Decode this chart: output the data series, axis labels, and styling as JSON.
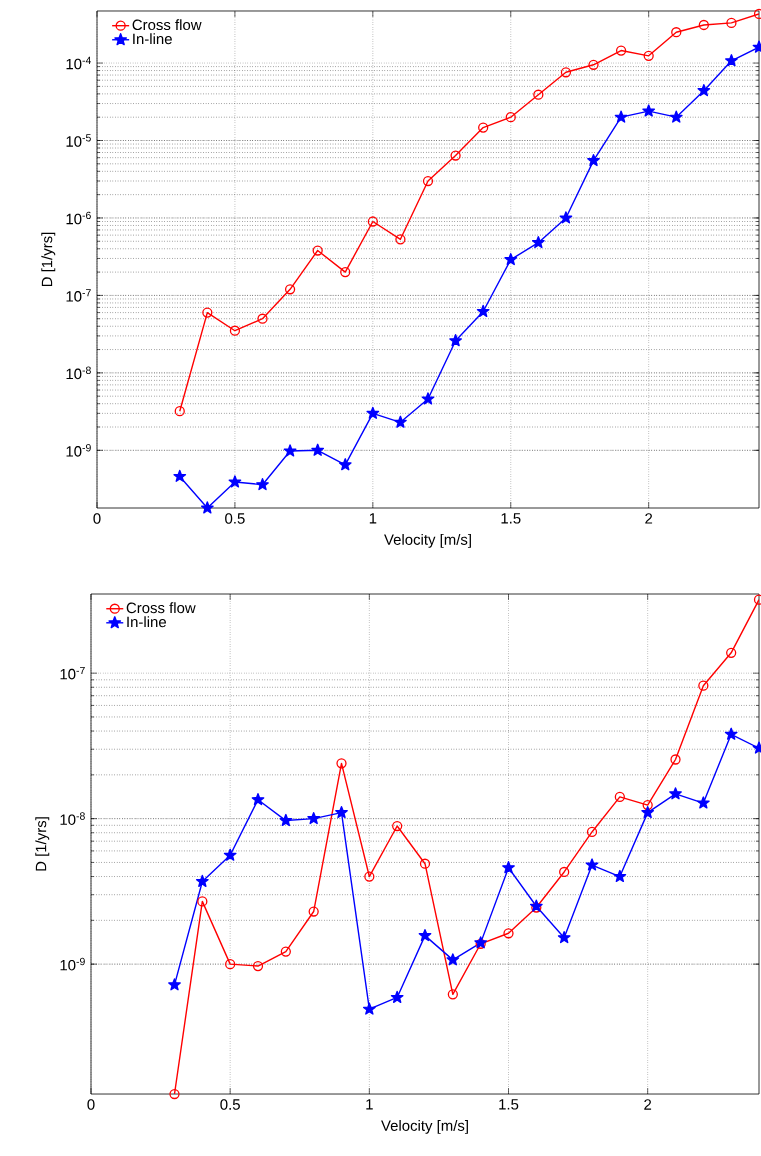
{
  "chart_data": [
    {
      "type": "line",
      "xlabel": "Velocity [m/s]",
      "ylabel": "D [1/yrs]",
      "log": "y",
      "grid": true,
      "legend": "top left",
      "line_style": "solid",
      "xlim": [
        0,
        2.4
      ],
      "xticks": [
        0,
        0.5,
        1,
        1.5,
        2
      ],
      "ylim": [
        1.8e-10,
        0.00047
      ],
      "yticks": [
        {
          "value": 1e-09,
          "label": "10$^{-9}$"
        },
        {
          "value": 1e-08,
          "label": "10$^{-8}$"
        },
        {
          "value": 1e-07,
          "label": "10$^{-7}$"
        },
        {
          "value": 1e-06,
          "label": "10$^{-6}$"
        },
        {
          "value": 1e-05,
          "label": "10$^{-5}$"
        },
        {
          "value": 0.0001,
          "label": "10$^{-4}$"
        }
      ],
      "x": [
        0.3,
        0.4,
        0.5,
        0.6,
        0.7,
        0.8,
        0.9,
        1.0,
        1.1,
        1.2,
        1.3,
        1.4,
        1.5,
        1.6,
        1.7,
        1.8,
        1.9,
        2.0,
        2.1,
        2.2,
        2.3,
        2.4
      ],
      "series": [
        {
          "name": "Cross flow",
          "color": "#ff0000",
          "marker": "circle",
          "values": [
            3.2e-09,
            6e-08,
            3.5e-08,
            5e-08,
            1.2e-07,
            3.8e-07,
            2e-07,
            9e-07,
            5.3e-07,
            3e-06,
            6.4e-06,
            1.47e-05,
            2e-05,
            3.9e-05,
            7.6e-05,
            9.5e-05,
            0.000145,
            0.000124,
            0.00025,
            0.00031,
            0.00033,
            0.00043
          ]
        },
        {
          "name": "In-line",
          "color": "#0000ff",
          "marker": "star",
          "values": [
            4.6e-10,
            1.8e-10,
            3.9e-10,
            3.6e-10,
            9.8e-10,
            1e-09,
            6.5e-10,
            3e-09,
            2.3e-09,
            4.6e-09,
            2.6e-08,
            6.2e-08,
            2.9e-07,
            4.8e-07,
            1e-06,
            5.5e-06,
            2e-05,
            2.4e-05,
            2e-05,
            4.4e-05,
            0.000107,
            0.00016
          ]
        }
      ]
    },
    {
      "type": "line",
      "xlabel": "Velocity [m/s]",
      "ylabel": "D [1/yrs]",
      "log": "y",
      "grid": true,
      "legend": "top left",
      "line_style": "solid",
      "xlim": [
        0,
        2.4
      ],
      "xticks": [
        0,
        0.5,
        1,
        1.5,
        2
      ],
      "ylim": [
        1.28e-10,
        3.5e-07
      ],
      "yticks": [
        {
          "value": 1e-09,
          "label": "10$^{-9}$"
        },
        {
          "value": 1e-08,
          "label": "10$^{-8}$"
        },
        {
          "value": 1e-07,
          "label": "10$^{-7}$"
        }
      ],
      "x": [
        0.3,
        0.4,
        0.5,
        0.6,
        0.7,
        0.8,
        0.9,
        1.0,
        1.1,
        1.2,
        1.3,
        1.4,
        1.5,
        1.6,
        1.7,
        1.8,
        1.9,
        2.0,
        2.1,
        2.2,
        2.3,
        2.4
      ],
      "series": [
        {
          "name": "Cross flow",
          "color": "#ff0000",
          "marker": "circle",
          "values": [
            1.28e-10,
            2.7e-09,
            1e-09,
            9.7e-10,
            1.22e-09,
            2.3e-09,
            2.4e-08,
            4e-09,
            8.9e-09,
            4.9e-09,
            6.2e-10,
            1.38e-09,
            1.63e-09,
            2.45e-09,
            4.3e-09,
            8.1e-09,
            1.41e-08,
            1.24e-08,
            2.55e-08,
            8.2e-08,
            1.38e-07,
            3.2e-07
          ]
        },
        {
          "name": "In-line",
          "color": "#0000ff",
          "marker": "star",
          "values": [
            7.2e-10,
            3.7e-09,
            5.6e-09,
            1.35e-08,
            9.7e-09,
            1e-08,
            1.1e-08,
            4.9e-10,
            5.9e-10,
            1.57e-09,
            1.07e-09,
            1.4e-09,
            4.6e-09,
            2.5e-09,
            1.52e-09,
            4.8e-09,
            4e-09,
            1.1e-08,
            1.48e-08,
            1.28e-08,
            3.8e-08,
            3.05e-08
          ]
        }
      ]
    }
  ]
}
